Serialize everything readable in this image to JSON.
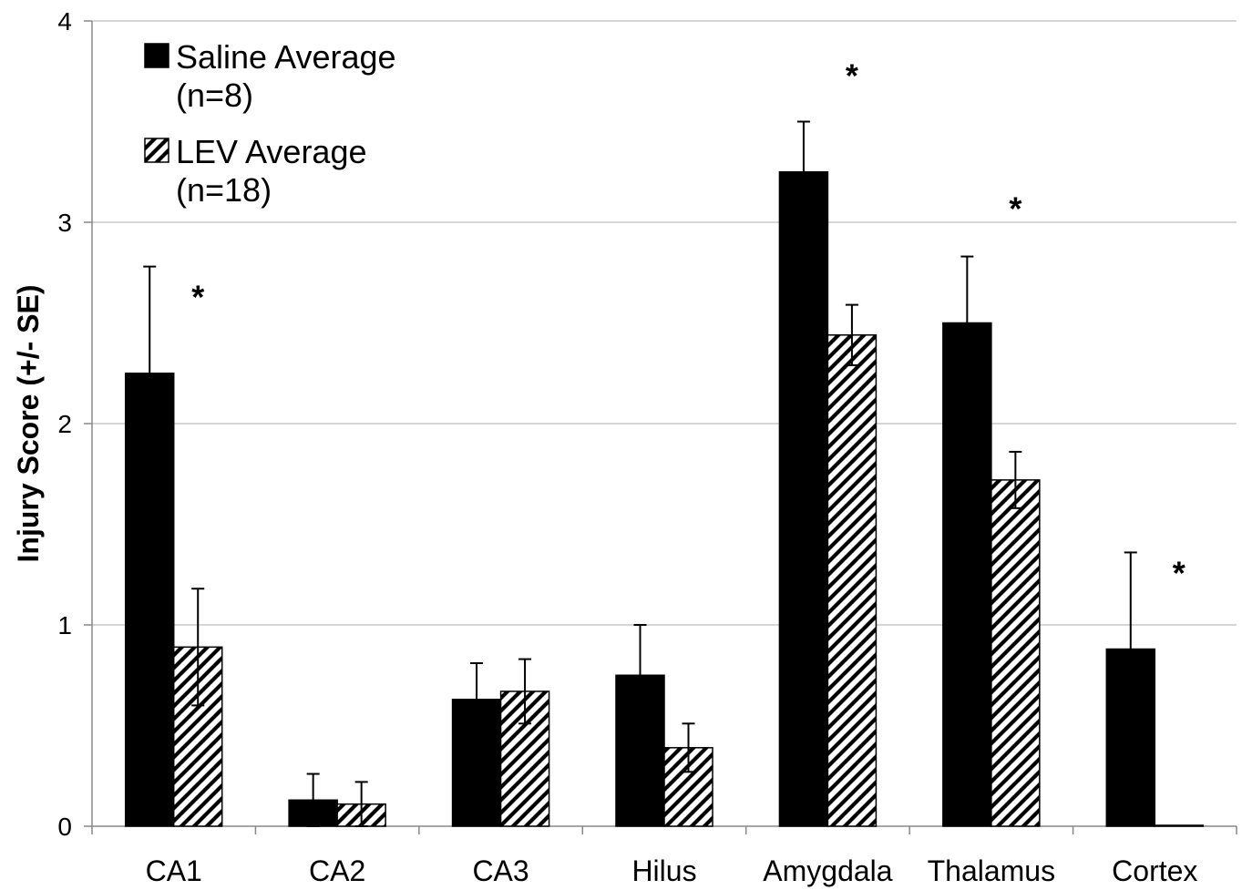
{
  "chart_data": {
    "type": "bar",
    "title": "",
    "xlabel": "",
    "ylabel": "Injury Score (+/- SE)",
    "ylim": [
      0,
      4
    ],
    "yticks": [
      "0",
      "1",
      "2",
      "3",
      "4"
    ],
    "grid": "horizontal",
    "legend_position": "top-left",
    "categories": [
      "CA1",
      "CA2",
      "CA3",
      "Hilus",
      "Amygdala",
      "Thalamus",
      "Cortex"
    ],
    "series": [
      {
        "name": "Saline Average",
        "legend_sub": "(n=8)",
        "pattern": "solid",
        "color": "#000000",
        "values": [
          2.25,
          0.13,
          0.63,
          0.75,
          3.25,
          2.5,
          0.88
        ],
        "errors": [
          0.53,
          0.13,
          0.18,
          0.25,
          0.25,
          0.33,
          0.48
        ]
      },
      {
        "name": "LEV Average",
        "legend_sub": "(n=18)",
        "pattern": "hatched",
        "color": "#000000",
        "values": [
          0.89,
          0.11,
          0.67,
          0.39,
          2.44,
          1.72,
          0.0
        ],
        "errors": [
          0.29,
          0.11,
          0.16,
          0.12,
          0.15,
          0.14,
          0.0
        ]
      }
    ],
    "annotations": [
      {
        "text": "*",
        "category": "CA1",
        "value": 2.68
      },
      {
        "text": "*",
        "category": "Amygdala",
        "value": 3.78
      },
      {
        "text": "*",
        "category": "Thalamus",
        "value": 3.12
      },
      {
        "text": "*",
        "category": "Cortex",
        "value": 1.31
      }
    ]
  }
}
